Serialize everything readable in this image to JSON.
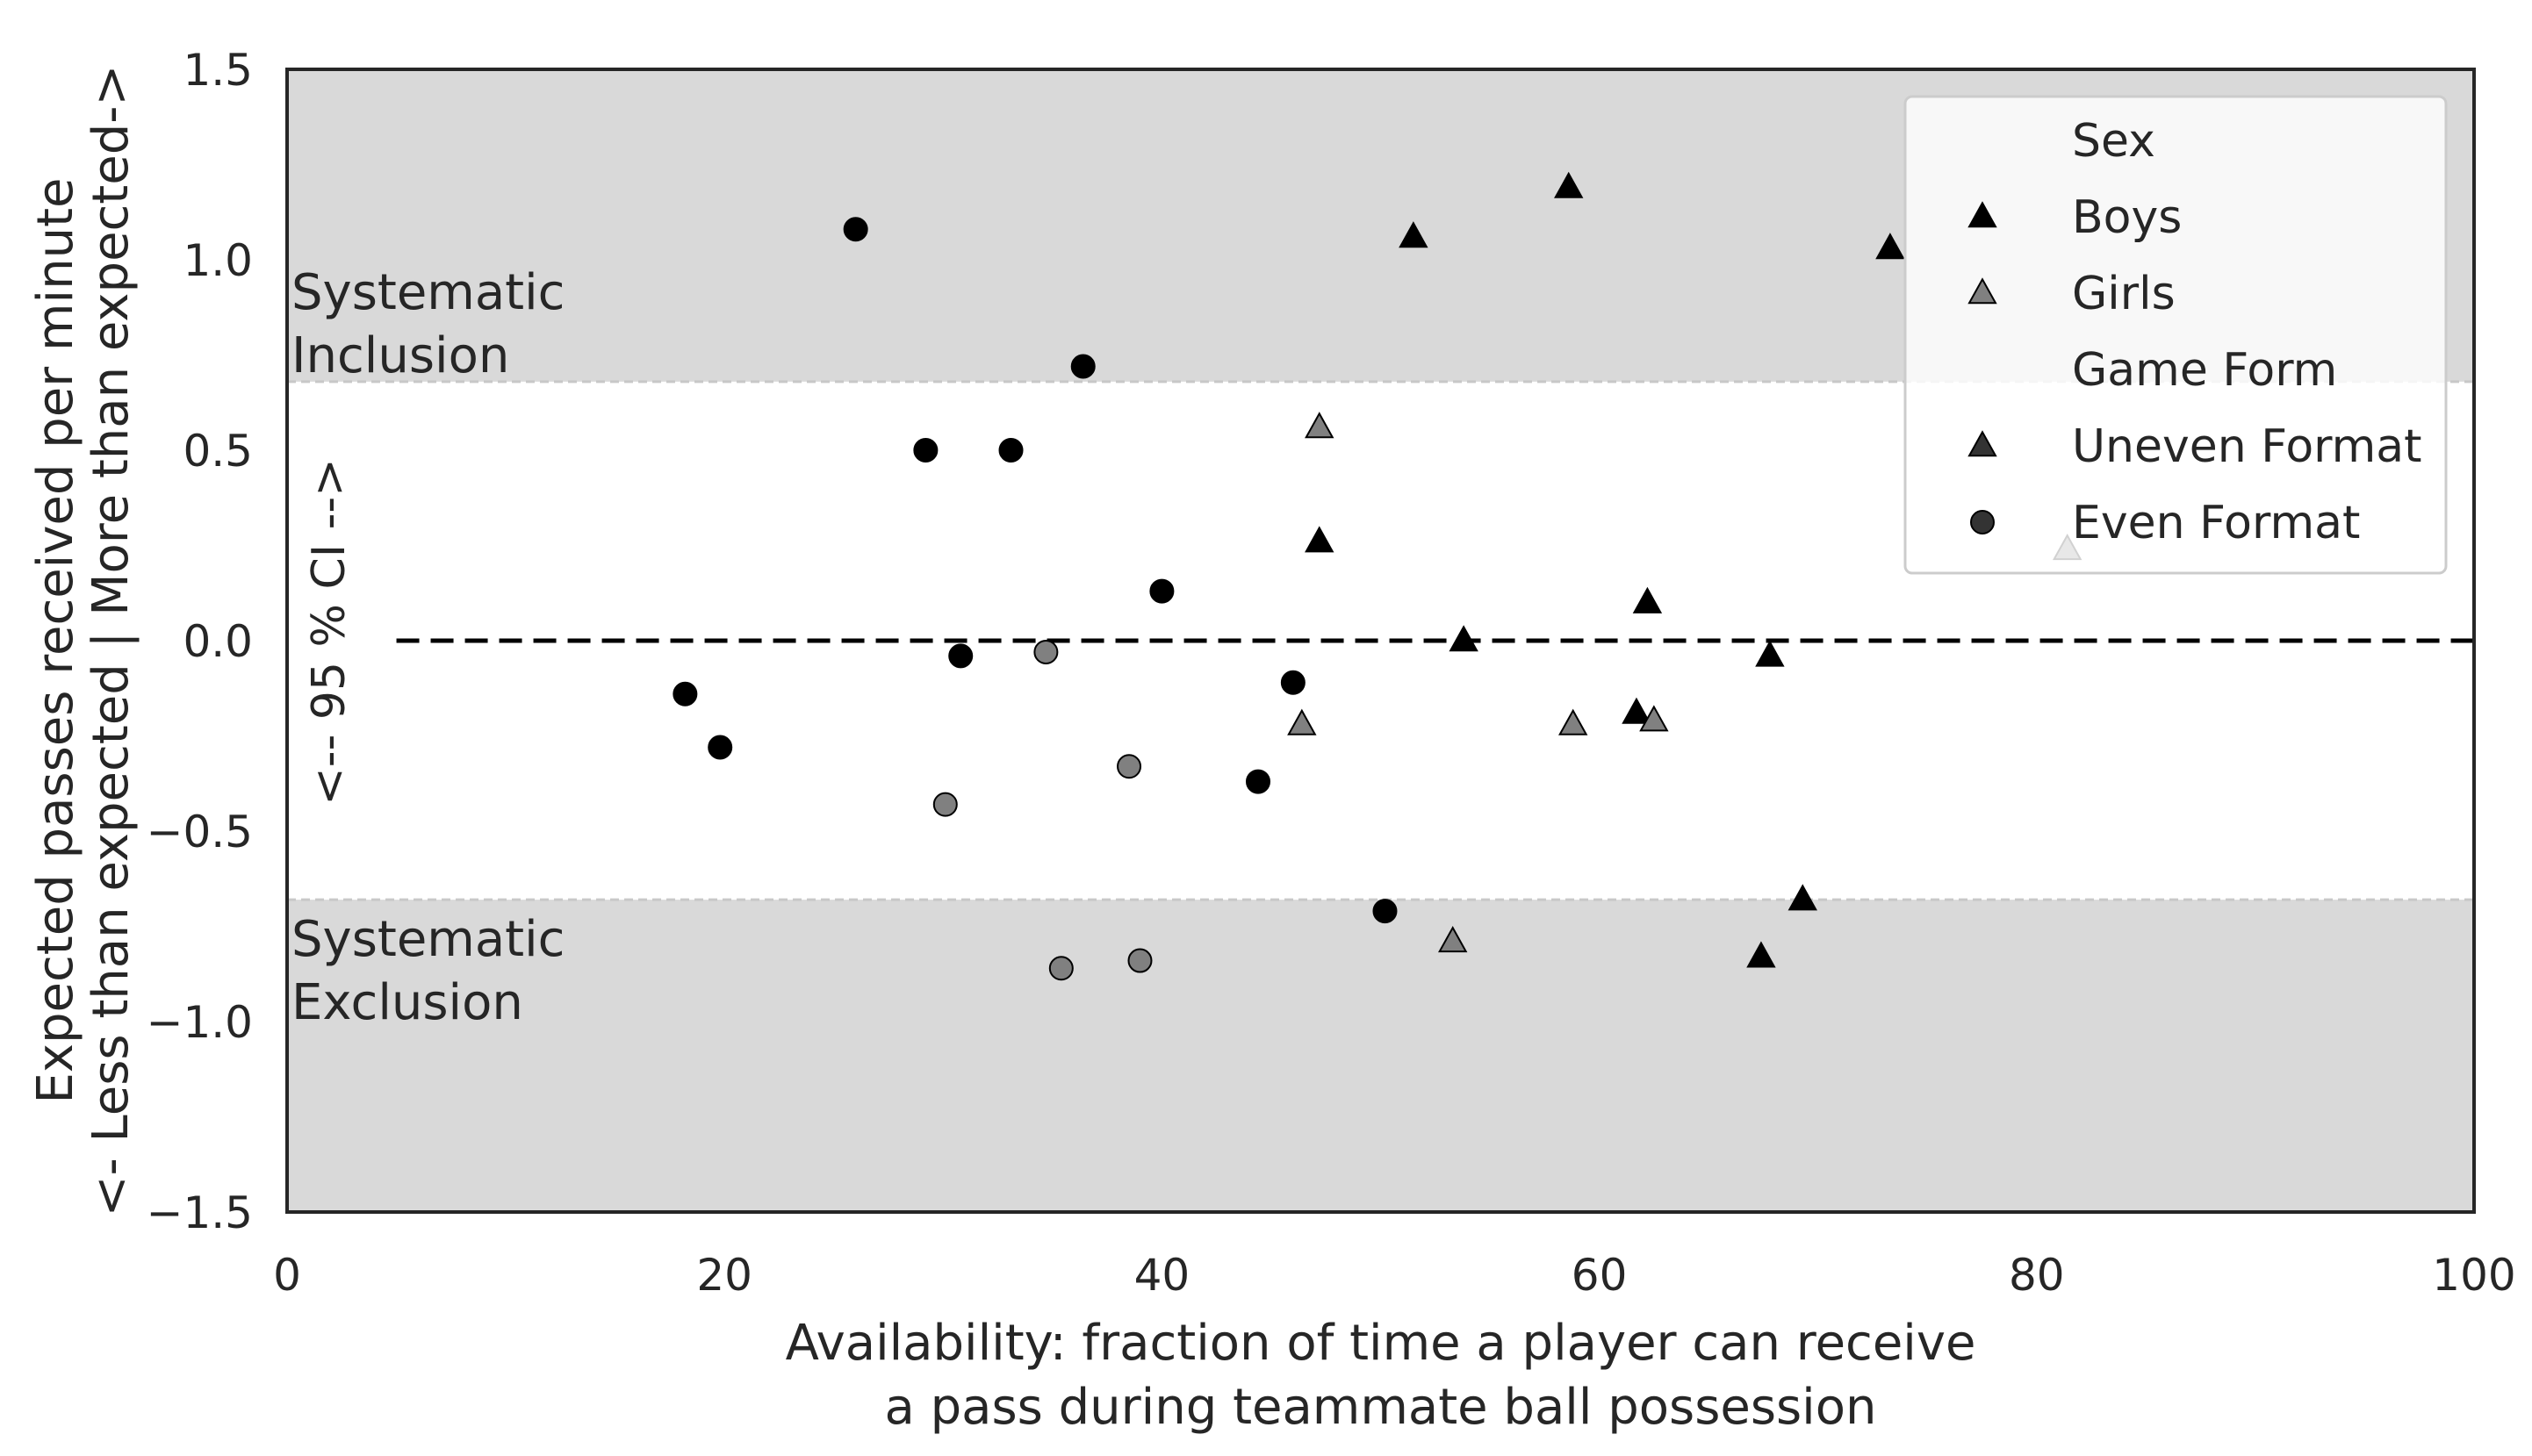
{
  "chart_data": {
    "type": "scatter",
    "xlabel": [
      "Availability: fraction of time a player can receive",
      "a pass during teammate ball possession"
    ],
    "ylabel": [
      "Expected passes received per minute",
      "<- Less than expected | More than expected->"
    ],
    "xlim": [
      0,
      100
    ],
    "ylim": [
      -1.5,
      1.5
    ],
    "xticks": [
      0,
      20,
      40,
      60,
      80,
      100
    ],
    "yticks": [
      -1.5,
      -1.0,
      -0.5,
      0.0,
      0.5,
      1.0,
      1.5
    ],
    "ytick_labels": [
      "−1.5",
      "−1.0",
      "−0.5",
      "0.0",
      "0.5",
      "1.0",
      "1.5"
    ],
    "grid": false,
    "ci_band": [
      -0.68,
      0.68
    ],
    "reference_line_y": 0.0,
    "reference_line_x_start": 5,
    "shaded_regions": {
      "inclusion_label": [
        "Systematic",
        "Inclusion"
      ],
      "exclusion_label": [
        "Systematic",
        "Exclusion"
      ]
    },
    "ci_label": "<--   95 % CI  -->",
    "colors": {
      "boys": "#000000",
      "girls": "#808080",
      "shade": "#d9d9d9",
      "band_line": "#c8c8c8",
      "frame": "#262626"
    },
    "legend": {
      "placement": "top-right",
      "entries": [
        {
          "kind": "header",
          "label": "Sex"
        },
        {
          "kind": "marker",
          "label": "Boys",
          "marker": "triangle",
          "color": "#000000"
        },
        {
          "kind": "marker",
          "label": "Girls",
          "marker": "triangle",
          "color": "#808080"
        },
        {
          "kind": "header",
          "label": "Game Form"
        },
        {
          "kind": "marker",
          "label": "Uneven Format",
          "marker": "triangle",
          "color": "#333333"
        },
        {
          "kind": "marker",
          "label": "Even Format",
          "marker": "circle",
          "color": "#333333"
        }
      ]
    },
    "series": [
      {
        "sex": "Boys",
        "format": "Even",
        "points": [
          [
            18.2,
            -0.14
          ],
          [
            19.8,
            -0.28
          ],
          [
            26.0,
            1.08
          ],
          [
            29.2,
            0.5
          ],
          [
            30.8,
            -0.04
          ],
          [
            33.1,
            0.5
          ],
          [
            36.4,
            0.72
          ],
          [
            40.0,
            0.13
          ],
          [
            44.4,
            -0.37
          ],
          [
            46.0,
            -0.11
          ],
          [
            50.2,
            -0.71
          ]
        ]
      },
      {
        "sex": "Girls",
        "format": "Even",
        "points": [
          [
            30.1,
            -0.43
          ],
          [
            34.7,
            -0.03
          ],
          [
            35.4,
            -0.86
          ],
          [
            38.5,
            -0.33
          ],
          [
            39.0,
            -0.84
          ]
        ]
      },
      {
        "sex": "Boys",
        "format": "Uneven",
        "points": [
          [
            47.2,
            0.26
          ],
          [
            51.5,
            1.06
          ],
          [
            53.8,
            0.0
          ],
          [
            58.6,
            1.19
          ],
          [
            61.7,
            -0.19
          ],
          [
            62.2,
            0.1
          ],
          [
            67.4,
            -0.83
          ],
          [
            67.8,
            -0.04
          ],
          [
            69.3,
            -0.68
          ],
          [
            73.3,
            1.03
          ]
        ]
      },
      {
        "sex": "Girls",
        "format": "Uneven",
        "points": [
          [
            46.4,
            -0.22
          ],
          [
            47.2,
            0.56
          ],
          [
            53.3,
            -0.79
          ],
          [
            58.8,
            -0.22
          ],
          [
            62.5,
            -0.21
          ],
          [
            81.4,
            0.24
          ]
        ]
      }
    ]
  }
}
